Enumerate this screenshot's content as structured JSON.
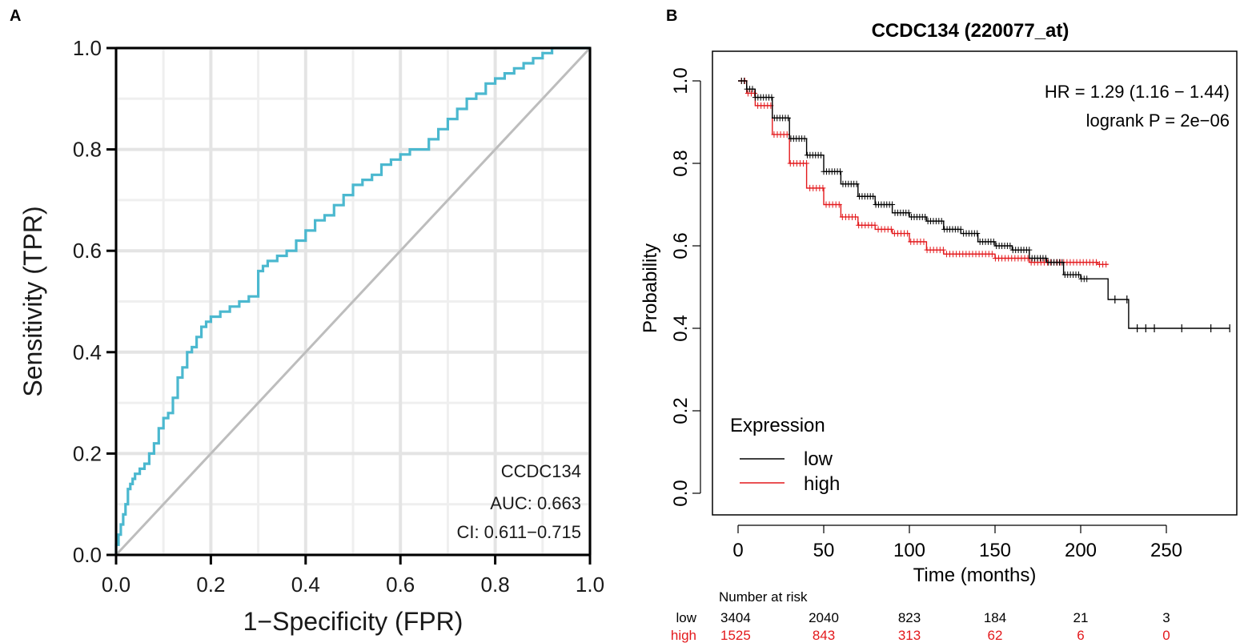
{
  "colors": {
    "roc_curve": "#4bb8cf",
    "diagonal": "#bdbdbd",
    "grid_major": "#e4e4e4",
    "grid_minor": "#efefef",
    "km_low": "#000000",
    "km_high": "#e3191c",
    "text": "#1a1a1a"
  },
  "panel_a": {
    "label": "A",
    "legend_lines": [
      "CCDC134",
      "AUC: 0.663",
      "CI: 0.611−0.715"
    ]
  },
  "panel_b": {
    "label": "B",
    "stats_lines": [
      "HR = 1.29 (1.16 − 1.44)",
      "logrank P = 2e−06"
    ],
    "legend_title": "Expression",
    "legend_low": "low",
    "legend_high": "high",
    "risk_table": {
      "title": "Number at risk",
      "times": [
        0,
        50,
        100,
        150,
        200,
        250
      ],
      "rows": [
        {
          "label": "low",
          "values": [
            "3404",
            "2040",
            "823",
            "184",
            "21",
            "3"
          ]
        },
        {
          "label": "high",
          "values": [
            "1525",
            "843",
            "313",
            "62",
            "6",
            "0"
          ]
        }
      ]
    }
  },
  "chart_data": [
    {
      "type": "line",
      "panel": "A",
      "title": "",
      "xlabel": "1−Specificity (FPR)",
      "ylabel": "Sensitivity (TPR)",
      "xlim": [
        0,
        1
      ],
      "ylim": [
        0,
        1
      ],
      "xticks": [
        "0.0",
        "0.2",
        "0.4",
        "0.6",
        "0.8",
        "1.0"
      ],
      "yticks": [
        "0.0",
        "0.2",
        "0.4",
        "0.6",
        "0.8",
        "1.0"
      ],
      "grid": true,
      "series": [
        {
          "name": "CCDC134 ROC",
          "x": [
            0,
            0.005,
            0.01,
            0.015,
            0.02,
            0.025,
            0.03,
            0.035,
            0.04,
            0.05,
            0.06,
            0.07,
            0.08,
            0.09,
            0.1,
            0.11,
            0.12,
            0.13,
            0.14,
            0.15,
            0.16,
            0.17,
            0.18,
            0.19,
            0.2,
            0.22,
            0.24,
            0.26,
            0.28,
            0.3,
            0.31,
            0.32,
            0.34,
            0.36,
            0.38,
            0.4,
            0.42,
            0.44,
            0.46,
            0.48,
            0.5,
            0.52,
            0.54,
            0.56,
            0.58,
            0.6,
            0.62,
            0.64,
            0.66,
            0.68,
            0.7,
            0.72,
            0.74,
            0.76,
            0.78,
            0.8,
            0.82,
            0.84,
            0.86,
            0.88,
            0.9,
            0.92,
            0.94,
            0.96,
            0.98,
            1.0
          ],
          "y": [
            0,
            0.02,
            0.04,
            0.06,
            0.08,
            0.1,
            0.13,
            0.14,
            0.15,
            0.16,
            0.17,
            0.18,
            0.2,
            0.22,
            0.25,
            0.27,
            0.28,
            0.31,
            0.35,
            0.37,
            0.4,
            0.41,
            0.43,
            0.45,
            0.46,
            0.47,
            0.48,
            0.49,
            0.5,
            0.51,
            0.56,
            0.57,
            0.58,
            0.59,
            0.6,
            0.62,
            0.64,
            0.66,
            0.67,
            0.69,
            0.71,
            0.73,
            0.74,
            0.75,
            0.77,
            0.78,
            0.79,
            0.8,
            0.8,
            0.82,
            0.84,
            0.86,
            0.88,
            0.9,
            0.91,
            0.93,
            0.94,
            0.95,
            0.96,
            0.97,
            0.98,
            0.99,
            1.0,
            1.0,
            1.0,
            1.0
          ]
        },
        {
          "name": "reference diagonal",
          "x": [
            0,
            1
          ],
          "y": [
            0,
            1
          ]
        }
      ]
    },
    {
      "type": "line",
      "panel": "B",
      "title": "CCDC134 (220077_at)",
      "xlabel": "Time (months)",
      "ylabel": "Probability",
      "xlim": [
        0,
        290
      ],
      "ylim": [
        0,
        1
      ],
      "xticks": [
        "0",
        "50",
        "100",
        "150",
        "200",
        "250"
      ],
      "yticks": [
        "0.0",
        "0.2",
        "0.4",
        "0.6",
        "0.8",
        "1.0"
      ],
      "grid": false,
      "legend_position": "bottom-left",
      "series": [
        {
          "name": "low",
          "time": [
            0,
            5,
            10,
            20,
            30,
            40,
            50,
            60,
            70,
            80,
            90,
            100,
            110,
            120,
            130,
            140,
            150,
            160,
            170,
            180,
            190,
            200,
            210,
            216,
            228,
            240,
            260,
            287
          ],
          "survival": [
            1.0,
            0.98,
            0.96,
            0.91,
            0.86,
            0.82,
            0.78,
            0.75,
            0.72,
            0.7,
            0.68,
            0.67,
            0.66,
            0.64,
            0.63,
            0.61,
            0.6,
            0.59,
            0.57,
            0.56,
            0.53,
            0.52,
            0.52,
            0.47,
            0.4,
            0.4,
            0.4,
            0.4
          ]
        },
        {
          "name": "high",
          "time": [
            0,
            5,
            10,
            20,
            30,
            40,
            50,
            60,
            70,
            80,
            90,
            100,
            110,
            120,
            130,
            140,
            150,
            160,
            170,
            180,
            190,
            200,
            210,
            216
          ],
          "survival": [
            1.0,
            0.97,
            0.94,
            0.87,
            0.8,
            0.74,
            0.7,
            0.67,
            0.65,
            0.64,
            0.63,
            0.61,
            0.59,
            0.58,
            0.58,
            0.58,
            0.57,
            0.57,
            0.56,
            0.56,
            0.56,
            0.56,
            0.555,
            0.555
          ]
        }
      ]
    }
  ]
}
